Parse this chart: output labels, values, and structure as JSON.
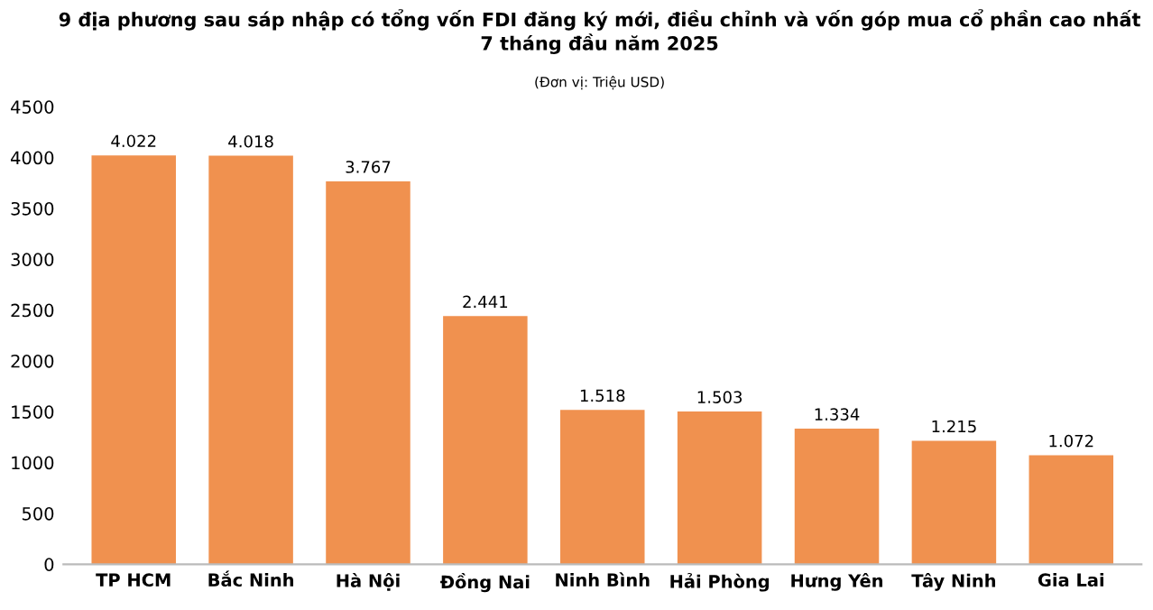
{
  "chart_data": {
    "type": "bar",
    "title": "9 địa phương sau sáp nhập có tổng vốn FDI đăng ký mới, điều chỉnh và vốn góp mua cổ phần cao nhất\n7 tháng đầu năm 2025",
    "subtitle": "(Đơn vị: Triệu USD)",
    "categories": [
      "TP HCM",
      "Bắc Ninh",
      "Hà Nội",
      "Đồng Nai",
      "Ninh Bình",
      "Hải Phòng",
      "Hưng Yên",
      "Tây Ninh",
      "Gia Lai"
    ],
    "values": [
      4022,
      4018,
      3767,
      2441,
      1518,
      1503,
      1334,
      1215,
      1072
    ],
    "value_labels": [
      "4.022",
      "4.018",
      "3.767",
      "2.441",
      "1.518",
      "1.503",
      "1.334",
      "1.215",
      "1.072"
    ],
    "color": "#f0914f",
    "ylim": [
      0,
      4500
    ],
    "yticks": [
      0,
      500,
      1000,
      1500,
      2000,
      2500,
      3000,
      3500,
      4000,
      4500
    ],
    "grid": false
  }
}
